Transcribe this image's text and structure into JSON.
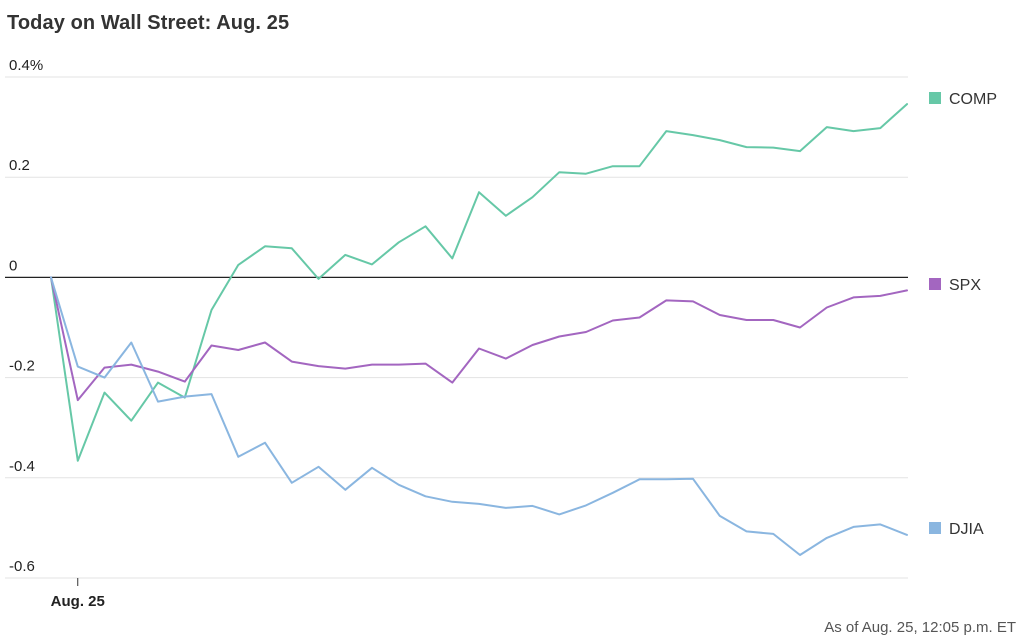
{
  "chart_data": {
    "type": "line",
    "title": "Today on Wall Street: Aug. 25",
    "footnote": "As of Aug. 25, 12:05 p.m. ET",
    "xlabel": "",
    "ylabel": "",
    "ylim": [
      -0.6,
      0.4
    ],
    "y_ticks": [
      {
        "value": 0.4,
        "label": "0.4%"
      },
      {
        "value": 0.2,
        "label": "0.2"
      },
      {
        "value": 0,
        "label": "0"
      },
      {
        "value": -0.2,
        "label": "-0.2"
      },
      {
        "value": -0.4,
        "label": "-0.4"
      },
      {
        "value": -0.6,
        "label": "-0.6"
      }
    ],
    "x_ticks": [
      {
        "index": 1,
        "label": "Aug. 25"
      }
    ],
    "grid": true,
    "legend_placement": "right",
    "series": [
      {
        "name": "COMP",
        "color": "#66c8a7",
        "values": [
          0.0,
          -0.366,
          -0.23,
          -0.286,
          -0.21,
          -0.24,
          -0.065,
          0.025,
          0.062,
          0.058,
          -0.003,
          0.045,
          0.026,
          0.07,
          0.102,
          0.038,
          0.17,
          0.123,
          0.16,
          0.21,
          0.207,
          0.222,
          0.222,
          0.292,
          0.284,
          0.274,
          0.26,
          0.259,
          0.252,
          0.3,
          0.292,
          0.298,
          0.346
        ]
      },
      {
        "name": "SPX",
        "color": "#a366c0",
        "values": [
          0.0,
          -0.245,
          -0.18,
          -0.174,
          -0.188,
          -0.208,
          -0.136,
          -0.145,
          -0.13,
          -0.168,
          -0.177,
          -0.182,
          -0.174,
          -0.174,
          -0.172,
          -0.21,
          -0.142,
          -0.162,
          -0.135,
          -0.118,
          -0.109,
          -0.086,
          -0.08,
          -0.046,
          -0.048,
          -0.075,
          -0.085,
          -0.085,
          -0.1,
          -0.06,
          -0.04,
          -0.037,
          -0.026
        ]
      },
      {
        "name": "DJIA",
        "color": "#8ab6e0",
        "values": [
          0.0,
          -0.178,
          -0.2,
          -0.13,
          -0.248,
          -0.238,
          -0.233,
          -0.358,
          -0.33,
          -0.41,
          -0.378,
          -0.424,
          -0.38,
          -0.414,
          -0.437,
          -0.448,
          -0.452,
          -0.46,
          -0.456,
          -0.473,
          -0.455,
          -0.43,
          -0.403,
          -0.403,
          -0.402,
          -0.476,
          -0.507,
          -0.512,
          -0.554,
          -0.52,
          -0.498,
          -0.493,
          -0.514
        ]
      }
    ]
  }
}
